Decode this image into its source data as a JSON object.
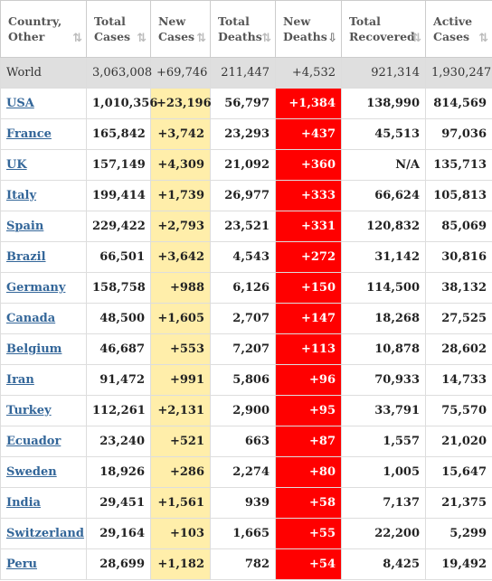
{
  "headers": [
    {
      "l1": "Country,",
      "l2": "Other"
    },
    {
      "l1": "Total",
      "l2": "Cases"
    },
    {
      "l1": "New",
      "l2": "Cases"
    },
    {
      "l1": "Total",
      "l2": "Deaths"
    },
    {
      "l1": "New",
      "l2": "Deaths"
    },
    {
      "l1": "Total",
      "l2": "Recovered"
    },
    {
      "l1": "Active",
      "l2": "Cases"
    }
  ],
  "sort_icon": "⇅",
  "sort_active_icon": "⇩",
  "world": {
    "country": "World",
    "total_cases": "3,063,008",
    "new_cases": "+69,746",
    "total_deaths": "211,447",
    "new_deaths": "+4,532",
    "total_recovered": "921,314",
    "active_cases": "1,930,247"
  },
  "rows": [
    {
      "country": "USA",
      "total_cases": "1,010,356",
      "new_cases": "+23,196",
      "total_deaths": "56,797",
      "new_deaths": "+1,384",
      "total_recovered": "138,990",
      "active_cases": "814,569"
    },
    {
      "country": "France",
      "total_cases": "165,842",
      "new_cases": "+3,742",
      "total_deaths": "23,293",
      "new_deaths": "+437",
      "total_recovered": "45,513",
      "active_cases": "97,036"
    },
    {
      "country": "UK",
      "total_cases": "157,149",
      "new_cases": "+4,309",
      "total_deaths": "21,092",
      "new_deaths": "+360",
      "total_recovered": "N/A",
      "active_cases": "135,713"
    },
    {
      "country": "Italy",
      "total_cases": "199,414",
      "new_cases": "+1,739",
      "total_deaths": "26,977",
      "new_deaths": "+333",
      "total_recovered": "66,624",
      "active_cases": "105,813"
    },
    {
      "country": "Spain",
      "total_cases": "229,422",
      "new_cases": "+2,793",
      "total_deaths": "23,521",
      "new_deaths": "+331",
      "total_recovered": "120,832",
      "active_cases": "85,069"
    },
    {
      "country": "Brazil",
      "total_cases": "66,501",
      "new_cases": "+3,642",
      "total_deaths": "4,543",
      "new_deaths": "+272",
      "total_recovered": "31,142",
      "active_cases": "30,816"
    },
    {
      "country": "Germany",
      "total_cases": "158,758",
      "new_cases": "+988",
      "total_deaths": "6,126",
      "new_deaths": "+150",
      "total_recovered": "114,500",
      "active_cases": "38,132"
    },
    {
      "country": "Canada",
      "total_cases": "48,500",
      "new_cases": "+1,605",
      "total_deaths": "2,707",
      "new_deaths": "+147",
      "total_recovered": "18,268",
      "active_cases": "27,525"
    },
    {
      "country": "Belgium",
      "total_cases": "46,687",
      "new_cases": "+553",
      "total_deaths": "7,207",
      "new_deaths": "+113",
      "total_recovered": "10,878",
      "active_cases": "28,602"
    },
    {
      "country": "Iran",
      "total_cases": "91,472",
      "new_cases": "+991",
      "total_deaths": "5,806",
      "new_deaths": "+96",
      "total_recovered": "70,933",
      "active_cases": "14,733"
    },
    {
      "country": "Turkey",
      "total_cases": "112,261",
      "new_cases": "+2,131",
      "total_deaths": "2,900",
      "new_deaths": "+95",
      "total_recovered": "33,791",
      "active_cases": "75,570"
    },
    {
      "country": "Ecuador",
      "total_cases": "23,240",
      "new_cases": "+521",
      "total_deaths": "663",
      "new_deaths": "+87",
      "total_recovered": "1,557",
      "active_cases": "21,020"
    },
    {
      "country": "Sweden",
      "total_cases": "18,926",
      "new_cases": "+286",
      "total_deaths": "2,274",
      "new_deaths": "+80",
      "total_recovered": "1,005",
      "active_cases": "15,647"
    },
    {
      "country": "India",
      "total_cases": "29,451",
      "new_cases": "+1,561",
      "total_deaths": "939",
      "new_deaths": "+58",
      "total_recovered": "7,137",
      "active_cases": "21,375"
    },
    {
      "country": "Switzerland",
      "total_cases": "29,164",
      "new_cases": "+103",
      "total_deaths": "1,665",
      "new_deaths": "+55",
      "total_recovered": "22,200",
      "active_cases": "5,299"
    },
    {
      "country": "Peru",
      "total_cases": "28,699",
      "new_cases": "+1,182",
      "total_deaths": "782",
      "new_deaths": "+54",
      "total_recovered": "8,425",
      "active_cases": "19,492"
    }
  ],
  "colors": {
    "new_cases_bg": "#FFEEAA",
    "new_deaths_bg": "#FF0000",
    "world_bg": "#DFDFDF",
    "link": "#336699"
  }
}
